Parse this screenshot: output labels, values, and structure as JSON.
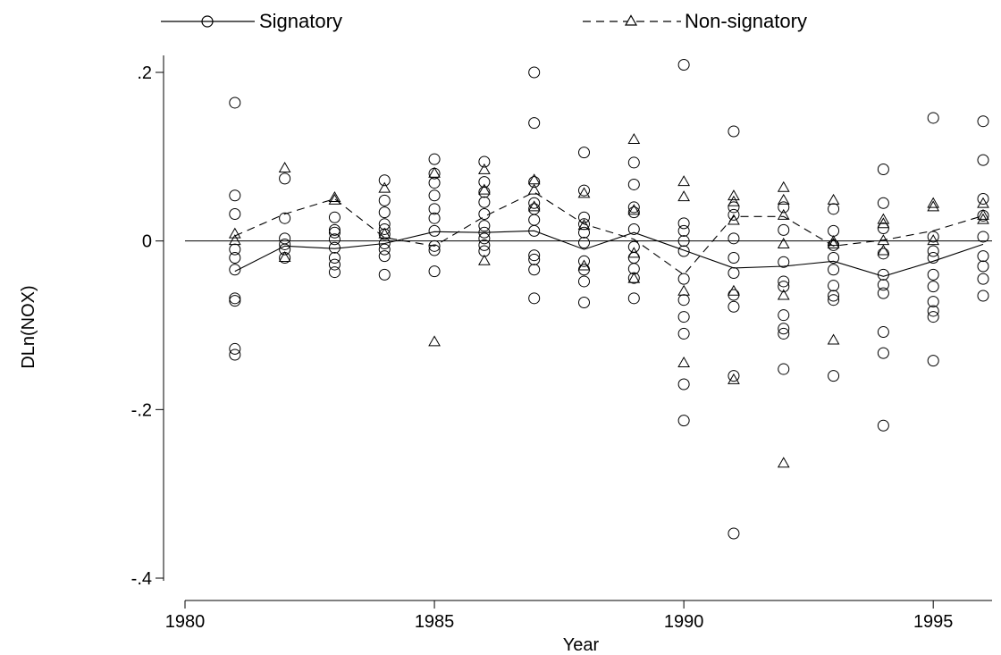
{
  "chart_data": {
    "type": "scatter",
    "xlabel": "Year",
    "ylabel": "DLn(NOX)",
    "xlim": [
      1980,
      1996
    ],
    "ylim": [
      -0.4,
      0.2
    ],
    "x_ticks": [
      1980,
      1985,
      1990,
      1995
    ],
    "x_tick_labels": [
      "1980",
      "1985",
      "1990",
      "1995"
    ],
    "y_ticks": [
      0.2,
      0,
      -0.2,
      -0.4
    ],
    "y_tick_labels": [
      ".2",
      "0",
      "-.2",
      "-.4"
    ],
    "reference_line_y": 0,
    "grid": false,
    "legend_position": "top",
    "series": [
      {
        "name": "Signatory",
        "marker": "circle",
        "line_style": "solid",
        "mean_line": [
          [
            1981,
            -0.036
          ],
          [
            1982,
            -0.006
          ],
          [
            1983,
            -0.009
          ],
          [
            1984,
            -0.003
          ],
          [
            1985,
            0.011
          ],
          [
            1986,
            0.01
          ],
          [
            1987,
            0.012
          ],
          [
            1988,
            -0.01
          ],
          [
            1989,
            0.01
          ],
          [
            1990,
            -0.011
          ],
          [
            1991,
            -0.032
          ],
          [
            1992,
            -0.03
          ],
          [
            1993,
            -0.024
          ],
          [
            1994,
            -0.042
          ],
          [
            1995,
            -0.024
          ],
          [
            1996,
            -0.004
          ]
        ],
        "points": [
          [
            1981,
            0.164
          ],
          [
            1981,
            0.054
          ],
          [
            1981,
            0.032
          ],
          [
            1981,
            -0.01
          ],
          [
            1981,
            -0.02
          ],
          [
            1981,
            -0.034
          ],
          [
            1981,
            -0.068
          ],
          [
            1981,
            -0.071
          ],
          [
            1981,
            -0.128
          ],
          [
            1981,
            -0.135
          ],
          [
            1982,
            0.074
          ],
          [
            1982,
            0.027
          ],
          [
            1982,
            0.003
          ],
          [
            1982,
            -0.004
          ],
          [
            1982,
            -0.01
          ],
          [
            1982,
            -0.02
          ],
          [
            1983,
            0.028
          ],
          [
            1983,
            0.013
          ],
          [
            1983,
            0.01
          ],
          [
            1983,
            0.002
          ],
          [
            1983,
            -0.008
          ],
          [
            1983,
            -0.02
          ],
          [
            1983,
            -0.028
          ],
          [
            1983,
            -0.037
          ],
          [
            1984,
            0.072
          ],
          [
            1984,
            0.048
          ],
          [
            1984,
            0.034
          ],
          [
            1984,
            0.02
          ],
          [
            1984,
            0.014
          ],
          [
            1984,
            0.008
          ],
          [
            1984,
            -0.003
          ],
          [
            1984,
            -0.01
          ],
          [
            1984,
            -0.018
          ],
          [
            1984,
            -0.04
          ],
          [
            1985,
            0.097
          ],
          [
            1985,
            0.08
          ],
          [
            1985,
            0.069
          ],
          [
            1985,
            0.054
          ],
          [
            1985,
            0.038
          ],
          [
            1985,
            0.027
          ],
          [
            1985,
            0.012
          ],
          [
            1985,
            -0.006
          ],
          [
            1985,
            -0.011
          ],
          [
            1985,
            -0.036
          ],
          [
            1986,
            0.094
          ],
          [
            1986,
            0.07
          ],
          [
            1986,
            0.058
          ],
          [
            1986,
            0.046
          ],
          [
            1986,
            0.032
          ],
          [
            1986,
            0.018
          ],
          [
            1986,
            0.01
          ],
          [
            1986,
            0.003
          ],
          [
            1986,
            -0.005
          ],
          [
            1986,
            -0.012
          ],
          [
            1987,
            0.2
          ],
          [
            1987,
            0.14
          ],
          [
            1987,
            0.07
          ],
          [
            1987,
            0.045
          ],
          [
            1987,
            0.038
          ],
          [
            1987,
            0.025
          ],
          [
            1987,
            0.012
          ],
          [
            1987,
            -0.017
          ],
          [
            1987,
            -0.022
          ],
          [
            1987,
            -0.034
          ],
          [
            1987,
            -0.068
          ],
          [
            1988,
            0.105
          ],
          [
            1988,
            0.06
          ],
          [
            1988,
            0.028
          ],
          [
            1988,
            0.02
          ],
          [
            1988,
            0.01
          ],
          [
            1988,
            -0.002
          ],
          [
            1988,
            -0.024
          ],
          [
            1988,
            -0.034
          ],
          [
            1988,
            -0.048
          ],
          [
            1988,
            -0.073
          ],
          [
            1989,
            0.093
          ],
          [
            1989,
            0.067
          ],
          [
            1989,
            0.04
          ],
          [
            1989,
            0.034
          ],
          [
            1989,
            0.014
          ],
          [
            1989,
            -0.007
          ],
          [
            1989,
            -0.02
          ],
          [
            1989,
            -0.033
          ],
          [
            1989,
            -0.044
          ],
          [
            1989,
            -0.068
          ],
          [
            1990,
            0.209
          ],
          [
            1990,
            0.021
          ],
          [
            1990,
            0.012
          ],
          [
            1990,
            0.0
          ],
          [
            1990,
            -0.012
          ],
          [
            1990,
            -0.045
          ],
          [
            1990,
            -0.07
          ],
          [
            1990,
            -0.09
          ],
          [
            1990,
            -0.11
          ],
          [
            1990,
            -0.17
          ],
          [
            1990,
            -0.213
          ],
          [
            1991,
            0.13
          ],
          [
            1991,
            0.04
          ],
          [
            1991,
            0.031
          ],
          [
            1991,
            0.003
          ],
          [
            1991,
            -0.02
          ],
          [
            1991,
            -0.038
          ],
          [
            1991,
            -0.064
          ],
          [
            1991,
            -0.078
          ],
          [
            1991,
            -0.16
          ],
          [
            1991,
            -0.347
          ],
          [
            1992,
            0.04
          ],
          [
            1992,
            0.013
          ],
          [
            1992,
            -0.025
          ],
          [
            1992,
            -0.048
          ],
          [
            1992,
            -0.054
          ],
          [
            1992,
            -0.088
          ],
          [
            1992,
            -0.104
          ],
          [
            1992,
            -0.11
          ],
          [
            1992,
            -0.152
          ],
          [
            1993,
            0.038
          ],
          [
            1993,
            0.012
          ],
          [
            1993,
            -0.005
          ],
          [
            1993,
            -0.02
          ],
          [
            1993,
            -0.034
          ],
          [
            1993,
            -0.053
          ],
          [
            1993,
            -0.065
          ],
          [
            1993,
            -0.07
          ],
          [
            1993,
            -0.16
          ],
          [
            1994,
            0.085
          ],
          [
            1994,
            0.045
          ],
          [
            1994,
            0.015
          ],
          [
            1994,
            -0.015
          ],
          [
            1994,
            -0.04
          ],
          [
            1994,
            -0.052
          ],
          [
            1994,
            -0.062
          ],
          [
            1994,
            -0.108
          ],
          [
            1994,
            -0.133
          ],
          [
            1994,
            -0.219
          ],
          [
            1995,
            0.146
          ],
          [
            1995,
            0.005
          ],
          [
            1995,
            -0.012
          ],
          [
            1995,
            -0.02
          ],
          [
            1995,
            -0.04
          ],
          [
            1995,
            -0.054
          ],
          [
            1995,
            -0.072
          ],
          [
            1995,
            -0.083
          ],
          [
            1995,
            -0.09
          ],
          [
            1995,
            -0.142
          ],
          [
            1996,
            0.142
          ],
          [
            1996,
            0.096
          ],
          [
            1996,
            0.05
          ],
          [
            1996,
            0.03
          ],
          [
            1996,
            0.005
          ],
          [
            1996,
            -0.018
          ],
          [
            1996,
            -0.03
          ],
          [
            1996,
            -0.045
          ],
          [
            1996,
            -0.065
          ]
        ]
      },
      {
        "name": "Non-signatory",
        "marker": "triangle",
        "line_style": "dashed",
        "mean_line": [
          [
            1981,
            0.006
          ],
          [
            1982,
            0.032
          ],
          [
            1983,
            0.05
          ],
          [
            1984,
            0.004
          ],
          [
            1985,
            -0.006
          ],
          [
            1986,
            0.029
          ],
          [
            1987,
            0.058
          ],
          [
            1988,
            0.02
          ],
          [
            1989,
            0.002
          ],
          [
            1990,
            -0.04
          ],
          [
            1991,
            0.029
          ],
          [
            1992,
            0.029
          ],
          [
            1993,
            -0.006
          ],
          [
            1994,
            0.001
          ],
          [
            1995,
            0.012
          ],
          [
            1996,
            0.03
          ]
        ],
        "points": [
          [
            1981,
            0.008
          ],
          [
            1981,
            0.0
          ],
          [
            1982,
            0.086
          ],
          [
            1982,
            -0.02
          ],
          [
            1983,
            0.051
          ],
          [
            1983,
            0.048
          ],
          [
            1984,
            0.062
          ],
          [
            1984,
            0.008
          ],
          [
            1985,
            -0.12
          ],
          [
            1985,
            0.08
          ],
          [
            1986,
            0.084
          ],
          [
            1986,
            0.06
          ],
          [
            1986,
            -0.024
          ],
          [
            1987,
            0.072
          ],
          [
            1987,
            0.06
          ],
          [
            1987,
            0.04
          ],
          [
            1988,
            0.056
          ],
          [
            1988,
            0.018
          ],
          [
            1988,
            -0.03
          ],
          [
            1989,
            0.12
          ],
          [
            1989,
            0.036
          ],
          [
            1989,
            -0.015
          ],
          [
            1989,
            -0.045
          ],
          [
            1990,
            0.07
          ],
          [
            1990,
            0.052
          ],
          [
            1990,
            -0.06
          ],
          [
            1990,
            -0.145
          ],
          [
            1991,
            0.053
          ],
          [
            1991,
            0.046
          ],
          [
            1991,
            0.024
          ],
          [
            1991,
            -0.06
          ],
          [
            1991,
            -0.165
          ],
          [
            1992,
            0.063
          ],
          [
            1992,
            0.048
          ],
          [
            1992,
            0.03
          ],
          [
            1992,
            -0.004
          ],
          [
            1992,
            -0.065
          ],
          [
            1992,
            -0.264
          ],
          [
            1993,
            0.048
          ],
          [
            1993,
            -0.001
          ],
          [
            1993,
            -0.004
          ],
          [
            1993,
            -0.118
          ],
          [
            1994,
            0.025
          ],
          [
            1994,
            0.02
          ],
          [
            1994,
            0.0
          ],
          [
            1994,
            -0.012
          ],
          [
            1995,
            0.044
          ],
          [
            1995,
            0.04
          ],
          [
            1995,
            0.0
          ],
          [
            1996,
            0.044
          ],
          [
            1996,
            0.03
          ],
          [
            1996,
            0.025
          ]
        ]
      }
    ]
  }
}
